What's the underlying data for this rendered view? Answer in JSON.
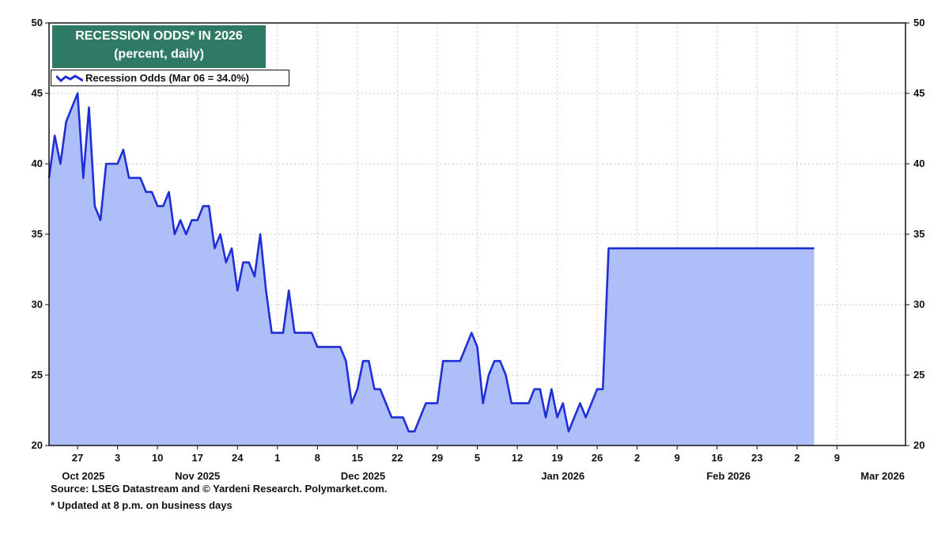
{
  "chart_data": {
    "type": "area",
    "title": "RECESSION ODDS* IN 2026",
    "subtitle": "(percent, daily)",
    "legend": "Recession Odds (Mar 06 = 34.0%)",
    "legend_position": "top-left",
    "ylim": [
      20,
      50
    ],
    "y_ticks": [
      20,
      25,
      30,
      35,
      40,
      45,
      50
    ],
    "xlim_day_index": [
      0,
      150
    ],
    "x_ticks": [
      {
        "day": 5,
        "label": "27"
      },
      {
        "day": 12,
        "label": "3"
      },
      {
        "day": 19,
        "label": "10"
      },
      {
        "day": 26,
        "label": "17"
      },
      {
        "day": 33,
        "label": "24"
      },
      {
        "day": 40,
        "label": "1"
      },
      {
        "day": 47,
        "label": "8"
      },
      {
        "day": 54,
        "label": "15"
      },
      {
        "day": 61,
        "label": "22"
      },
      {
        "day": 68,
        "label": "29"
      },
      {
        "day": 75,
        "label": "5"
      },
      {
        "day": 82,
        "label": "12"
      },
      {
        "day": 89,
        "label": "19"
      },
      {
        "day": 96,
        "label": "26"
      },
      {
        "day": 103,
        "label": "2"
      },
      {
        "day": 110,
        "label": "9"
      },
      {
        "day": 117,
        "label": "16"
      },
      {
        "day": 124,
        "label": "23"
      },
      {
        "day": 131,
        "label": "2"
      },
      {
        "day": 138,
        "label": "9"
      }
    ],
    "month_labels": [
      {
        "day": 6,
        "label": "Oct 2025"
      },
      {
        "day": 26,
        "label": "Nov 2025"
      },
      {
        "day": 55,
        "label": "Dec 2025"
      },
      {
        "day": 90,
        "label": "Jan 2026"
      },
      {
        "day": 119,
        "label": "Feb 2026"
      },
      {
        "day": 146,
        "label": "Mar 2026"
      }
    ],
    "series": [
      {
        "name": "Recession Odds",
        "color": "#1f2fd6",
        "fill": "#aebff8",
        "x": [
          0,
          1,
          2,
          3,
          4,
          5,
          6,
          7,
          8,
          9,
          10,
          11,
          12,
          13,
          14,
          15,
          16,
          17,
          18,
          19,
          20,
          21,
          22,
          23,
          24,
          25,
          26,
          27,
          28,
          29,
          30,
          31,
          32,
          33,
          34,
          35,
          36,
          37,
          38,
          39,
          40,
          41,
          42,
          43,
          44,
          45,
          46,
          47,
          48,
          49,
          50,
          51,
          52,
          53,
          54,
          55,
          56,
          57,
          58,
          59,
          60,
          61,
          62,
          63,
          64,
          65,
          66,
          67,
          68,
          69,
          70,
          71,
          72,
          73,
          74,
          75,
          76,
          77,
          78,
          79,
          80,
          81,
          82,
          83,
          84,
          85,
          86,
          87,
          88,
          89,
          90,
          91,
          92,
          93,
          94,
          95,
          96,
          97,
          98,
          99,
          100,
          101,
          102,
          103,
          104,
          105,
          106,
          107,
          108,
          109,
          110,
          111,
          112,
          113,
          114,
          115,
          116,
          117,
          118,
          119,
          120,
          121,
          122,
          123,
          124,
          125,
          126,
          127,
          128,
          129,
          130,
          131,
          132,
          133,
          134
        ],
        "values": [
          39,
          42,
          40,
          43,
          44,
          45,
          39,
          44,
          37,
          36,
          40,
          40,
          40,
          41,
          39,
          39,
          39,
          38,
          38,
          37,
          37,
          38,
          35,
          36,
          35,
          36,
          36,
          37,
          37,
          34,
          35,
          33,
          34,
          31,
          33,
          33,
          32,
          35,
          31,
          28,
          28,
          28,
          31,
          28,
          28,
          28,
          28,
          27,
          27,
          27,
          27,
          27,
          26,
          23,
          24,
          26,
          26,
          24,
          24,
          23,
          22,
          22,
          22,
          21,
          21,
          22,
          23,
          23,
          23,
          26,
          26,
          26,
          26,
          27,
          28,
          27,
          23,
          25,
          26,
          26,
          25,
          23,
          23,
          23,
          23,
          24,
          24,
          22,
          24,
          22,
          23,
          21,
          22,
          23,
          22,
          23,
          24,
          24,
          34,
          34,
          34,
          34,
          34,
          34,
          34,
          34,
          34,
          34,
          34,
          34,
          34,
          34,
          34,
          34,
          34,
          34,
          34,
          34,
          34,
          34,
          34,
          34,
          34,
          34,
          34,
          34,
          34,
          34,
          34,
          34,
          34,
          34,
          34,
          34,
          34
        ]
      }
    ],
    "grid": true
  },
  "footer": {
    "source": "Source: LSEG Datastream and © Yardeni Research. Polymarket.com.",
    "note": "* Updated at 8 p.m. on business days"
  }
}
